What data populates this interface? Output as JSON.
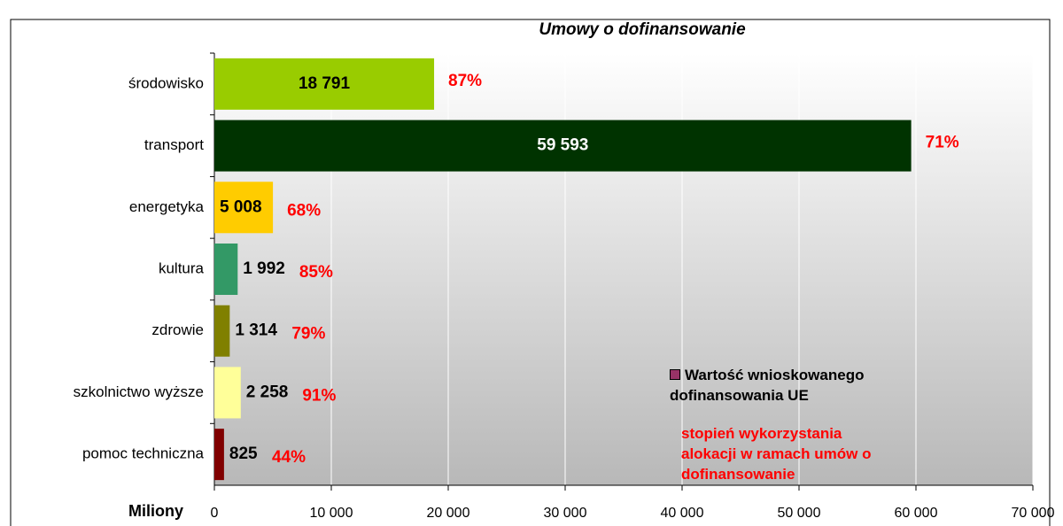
{
  "chart_data": {
    "type": "hbar",
    "title": "Umowy o dofinansowanie",
    "x_label": "Miliony",
    "categories": [
      "środowisko",
      "transport",
      "energetyka",
      "kultura",
      "zdrowie",
      "szkolnictwo wyższe",
      "pomoc techniczna"
    ],
    "series": [
      {
        "name": "Wartość wnioskowanego dofinansowania UE",
        "color": "#993366",
        "values": [
          18791,
          59593,
          5008,
          1992,
          1314,
          2258,
          825
        ],
        "value_labels": [
          "18 791",
          "59 593",
          "5 008",
          "1 992",
          "1 314",
          "2 258",
          "825"
        ]
      }
    ],
    "bar_colors": [
      "#99cc00",
      "#003300",
      "#ffcc00",
      "#339966",
      "#808000",
      "#ffff99",
      "#800000"
    ],
    "percent_labels": [
      "87%",
      "71%",
      "68%",
      "85%",
      "79%",
      "91%",
      "44%"
    ],
    "annotation": "stopień wykorzystania alokacji w ramach umów o dofinansowanie",
    "xlim": [
      0,
      70000
    ],
    "xticks": [
      0,
      {
        "value": 10000,
        "label": "10 000"
      },
      {
        "value": 20000,
        "label": "20 000"
      },
      {
        "value": 30000,
        "label": "30 000"
      },
      {
        "value": 40000,
        "label": "40 000"
      },
      {
        "value": 50000,
        "label": "50 000"
      },
      {
        "value": 60000,
        "label": "60 000"
      },
      {
        "value": 70000,
        "label": "70 000"
      }
    ],
    "grid": true
  }
}
